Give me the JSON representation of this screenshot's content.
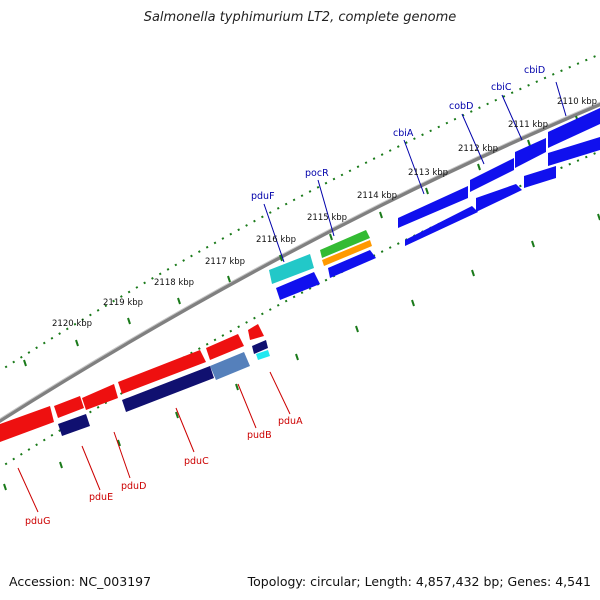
{
  "title": "Salmonella typhimurium LT2, complete genome",
  "footer": {
    "accession": "Accession: NC_003197",
    "stats": "Topology: circular; Length: 4,857,432 bp; Genes: 4,541"
  },
  "ticks": [
    "2110 kbp",
    "2111 kbp",
    "2112 kbp",
    "2113 kbp",
    "2114 kbp",
    "2115 kbp",
    "2116 kbp",
    "2117 kbp",
    "2118 kbp",
    "2119 kbp",
    "2120 kbp"
  ],
  "genes_forward": [
    {
      "name": "cbiD",
      "color": "#0000aa"
    },
    {
      "name": "cbiC",
      "color": "#0000aa"
    },
    {
      "name": "cobD",
      "color": "#0000aa"
    },
    {
      "name": "cbiA",
      "color": "#0000aa"
    },
    {
      "name": "pocR",
      "color": "#0000aa"
    },
    {
      "name": "pduF",
      "color": "#0000aa"
    }
  ],
  "genes_reverse": [
    {
      "name": "pduA",
      "color": "#cc0000"
    },
    {
      "name": "pudB",
      "color": "#cc0000"
    },
    {
      "name": "pduC",
      "color": "#cc0000"
    },
    {
      "name": "pduD",
      "color": "#cc0000"
    },
    {
      "name": "pduE",
      "color": "#cc0000"
    },
    {
      "name": "pduG",
      "color": "#cc0000"
    }
  ],
  "colors": {
    "blue": "#1010ee",
    "red": "#ee1010",
    "navy": "#101070",
    "steel": "#5580bb",
    "cyan": "#22d8d8",
    "green": "#33bb33",
    "orange": "#ff9900",
    "backbone": "#808080",
    "tick": "#1a7a1a"
  }
}
